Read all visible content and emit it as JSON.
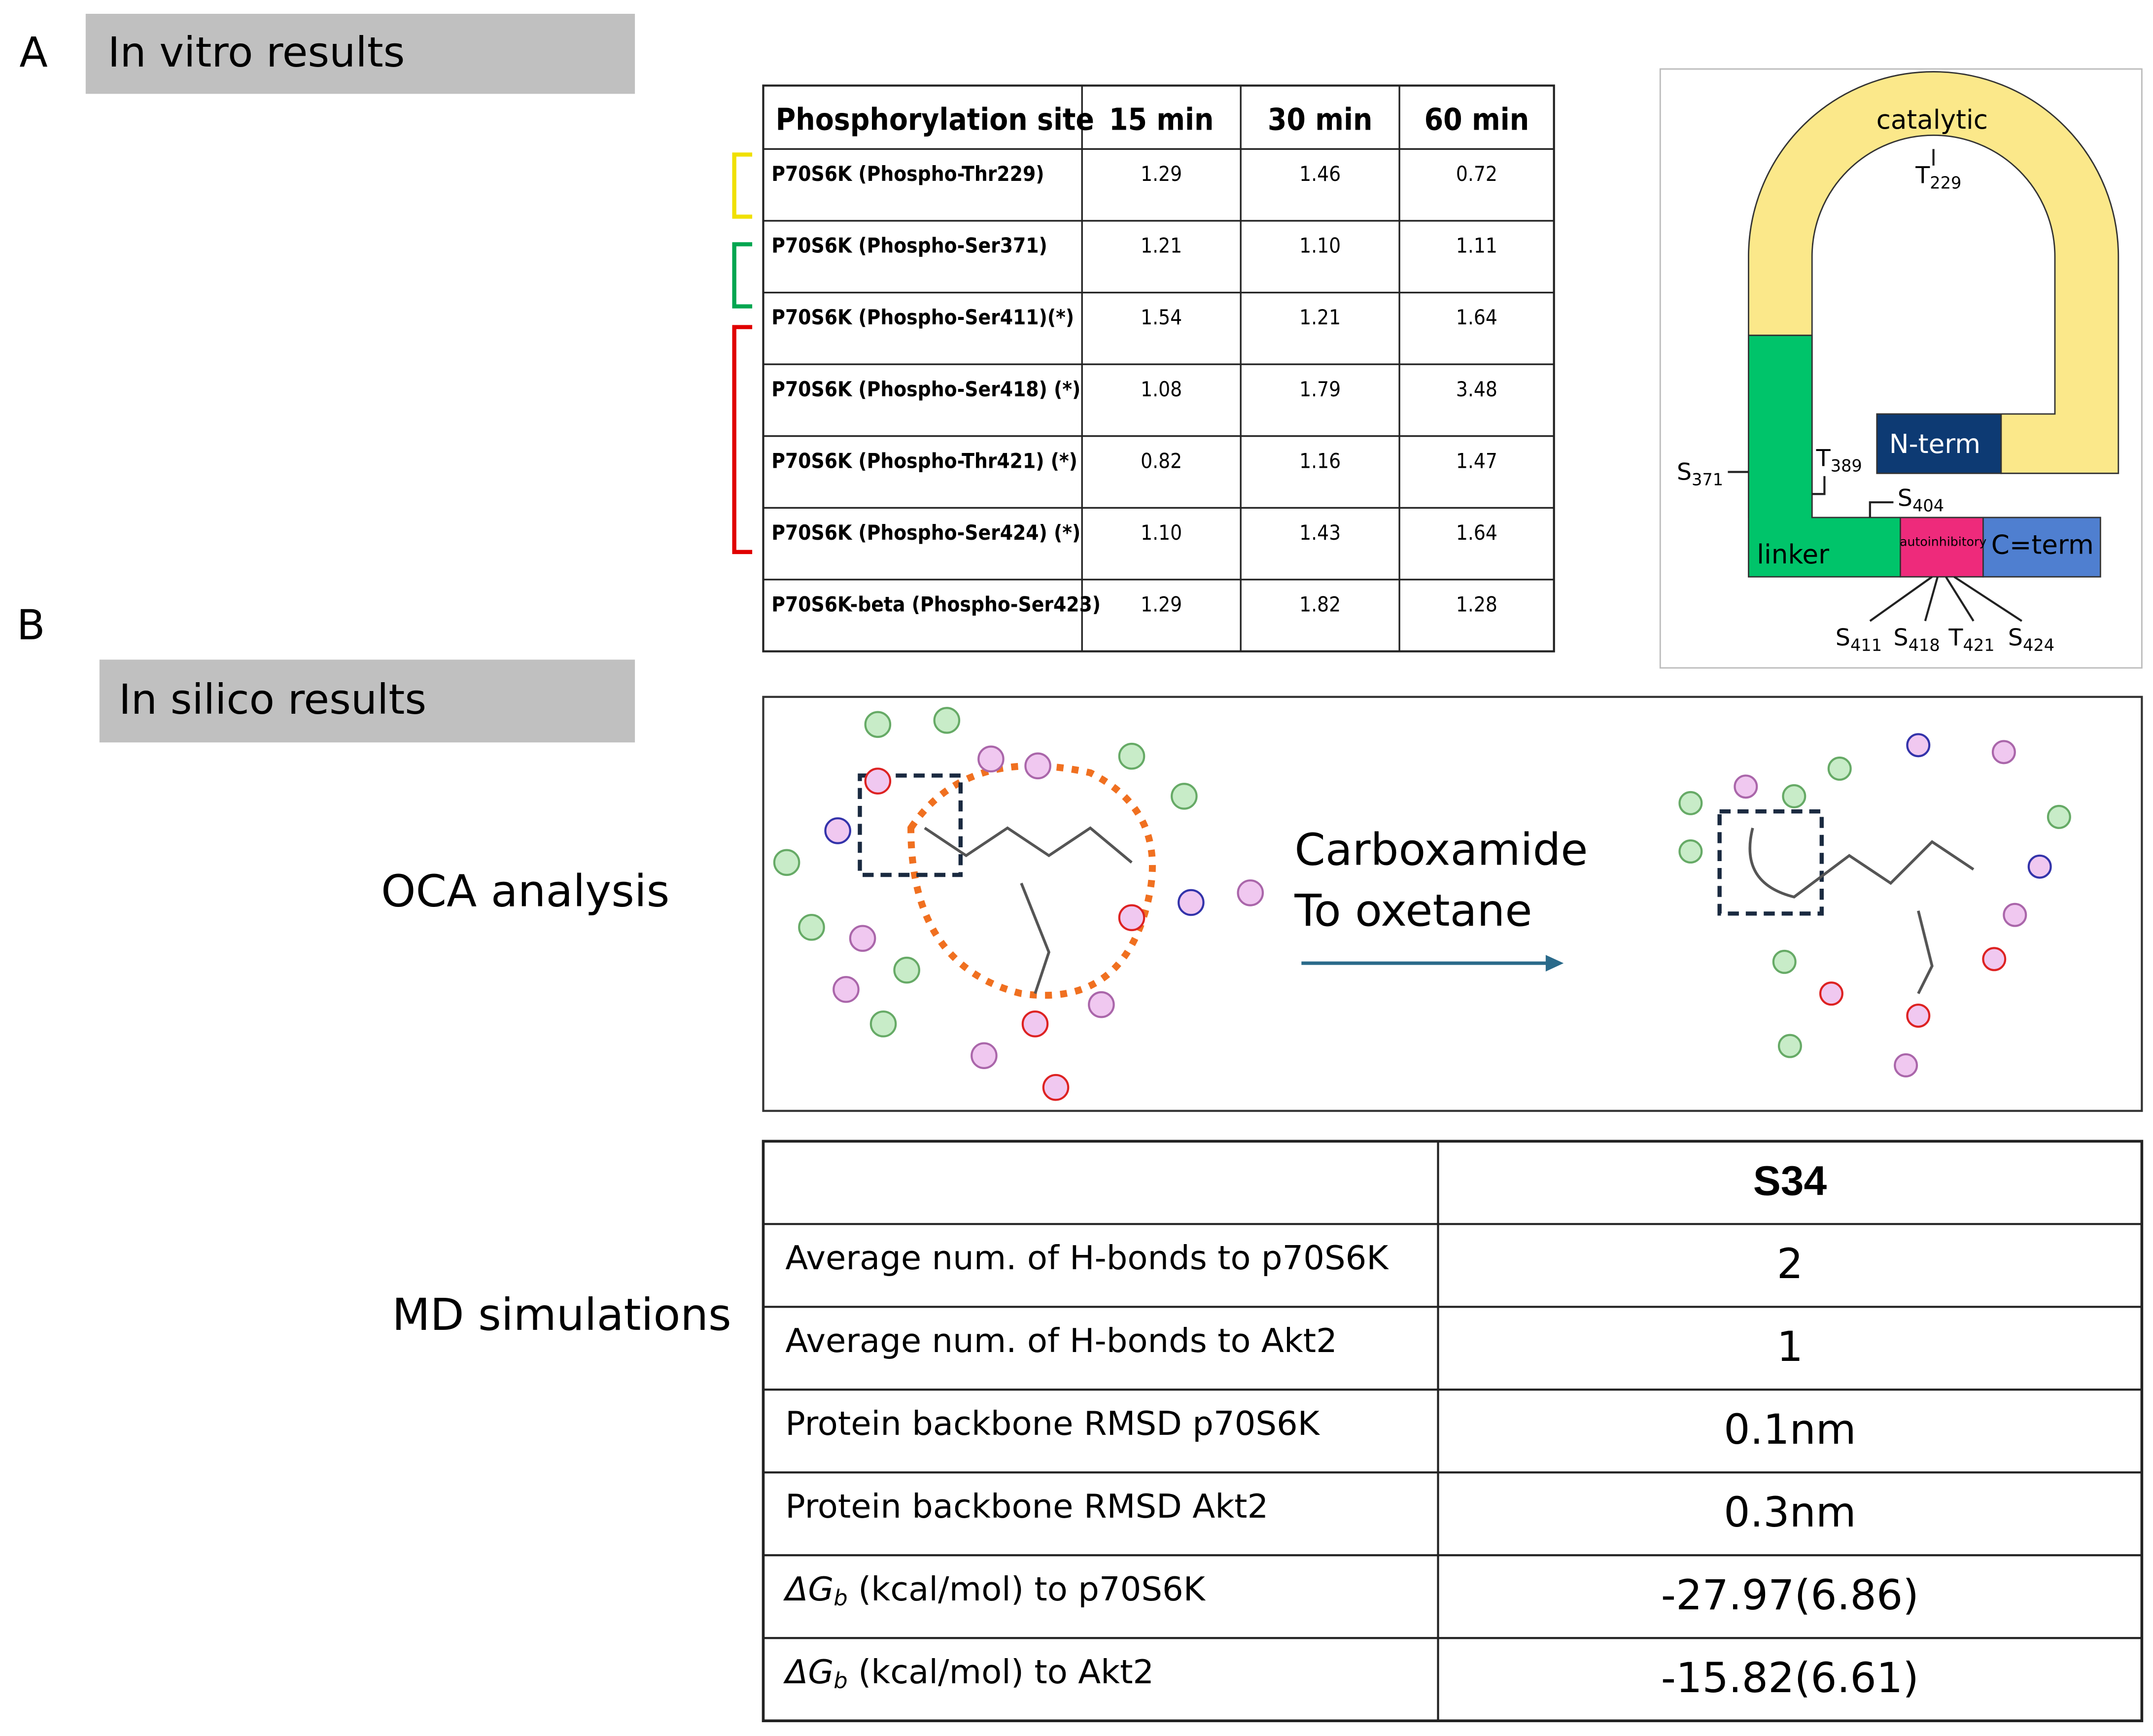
{
  "panel_a": {
    "label": "A",
    "header": "In vitro results",
    "table": {
      "columns": [
        "Phosphorylation site",
        "15 min",
        "30 min",
        "60 min"
      ],
      "rows": [
        [
          "P70S6K (Phospho-Thr229)",
          "1.29",
          "1.46",
          "0.72"
        ],
        [
          "P70S6K (Phospho-Ser371)",
          "1.21",
          "1.10",
          "1.11"
        ],
        [
          "P70S6K (Phospho-Ser411)(*)",
          "1.54",
          "1.21",
          "1.64"
        ],
        [
          "P70S6K (Phospho-Ser418) (*)",
          "1.08",
          "1.79",
          "3.48"
        ],
        [
          "P70S6K (Phospho-Thr421) (*)",
          "0.82",
          "1.16",
          "1.47"
        ],
        [
          "P70S6K (Phospho-Ser424) (*)",
          "1.10",
          "1.43",
          "1.64"
        ],
        [
          "P70S6K-beta (Phospho-Ser423)",
          "1.29",
          "1.82",
          "1.28"
        ]
      ]
    },
    "diagram": {
      "catalytic": "catalytic",
      "n_term": "N-term",
      "linker": "linker",
      "autoinhibitory": "autoinhibitory",
      "c_term": "C=term",
      "sites": [
        [
          "T",
          "229"
        ],
        [
          "S",
          "371"
        ],
        [
          "T",
          "389"
        ],
        [
          "S",
          "404"
        ],
        [
          "S",
          "411"
        ],
        [
          "S",
          "418"
        ],
        [
          "T",
          "421"
        ],
        [
          "S",
          "424"
        ]
      ]
    }
  },
  "panel_b": {
    "label": "B",
    "header": "In silico results",
    "oca": {
      "label": "OCA analysis",
      "arrow_text": [
        "Carboxamide",
        "To oxetane"
      ]
    },
    "md": {
      "label": "MD simulations",
      "header": "S34",
      "rows": [
        {
          "label": [
            "Average num. of H-bonds to p70S6K"
          ],
          "value": "2"
        },
        {
          "label": [
            "Average num. of H-bonds to Akt2"
          ],
          "value": "1"
        },
        {
          "label": [
            "Protein backbone RMSD  p70S6K"
          ],
          "value": "0.1nm"
        },
        {
          "label": [
            "Protein backbone RMSD  Akt2"
          ],
          "value": "0.3nm"
        },
        {
          "label": [
            "ΔG",
            "b",
            "  (kcal/mol) to p70S6K"
          ],
          "value": "-27.97(6.86)"
        },
        {
          "label": [
            "ΔG",
            "b",
            "  (kcal/mol) to Akt2"
          ],
          "value": "-15.82(6.61)"
        }
      ]
    }
  }
}
